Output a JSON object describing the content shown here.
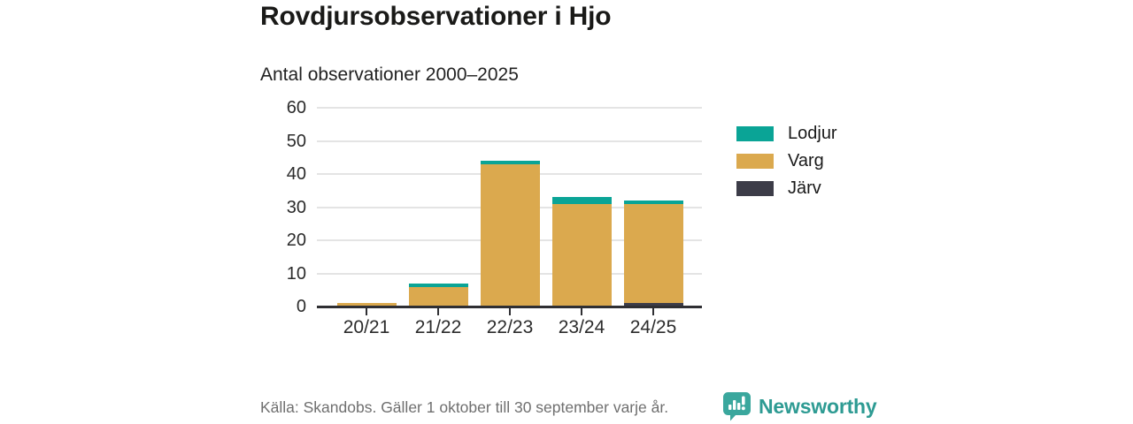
{
  "header": {
    "title": "Rovdjursobservationer i Hjo",
    "subtitle": "Antal observationer 2000–2025"
  },
  "chart_data": {
    "type": "bar",
    "stacked": true,
    "title": "Rovdjursobservationer i Hjo",
    "subtitle": "Antal observationer 2000–2025",
    "categories": [
      "20/21",
      "21/22",
      "22/23",
      "23/24",
      "24/25"
    ],
    "series": [
      {
        "name": "Lodjur",
        "color": "#0aa496",
        "values": [
          0,
          1,
          1,
          2,
          1
        ]
      },
      {
        "name": "Varg",
        "color": "#dba94e",
        "values": [
          1,
          6,
          43,
          31,
          30
        ]
      },
      {
        "name": "Järv",
        "color": "#3c3c48",
        "values": [
          0,
          0,
          0,
          0,
          1
        ]
      }
    ],
    "totals": [
      1,
      7,
      44,
      33,
      32
    ],
    "xlabel": "",
    "ylabel": "",
    "ylim": [
      0,
      60
    ],
    "yticks": [
      0,
      10,
      20,
      30,
      40,
      50,
      60
    ],
    "grid": "horizontal",
    "legend_position": "right"
  },
  "footer": {
    "source": "Källa: Skandobs. Gäller 1 oktober till 30 september varje år.",
    "brand": "Newsworthy"
  },
  "colors": {
    "accent_teal": "#0aa496",
    "accent_tan": "#dba94e",
    "accent_dark": "#3c3c48",
    "axis_line": "#2f2f33",
    "gridline": "#e4e4e4",
    "brand_teal": "#2e9b93",
    "source_gray": "#6f6f6f"
  }
}
